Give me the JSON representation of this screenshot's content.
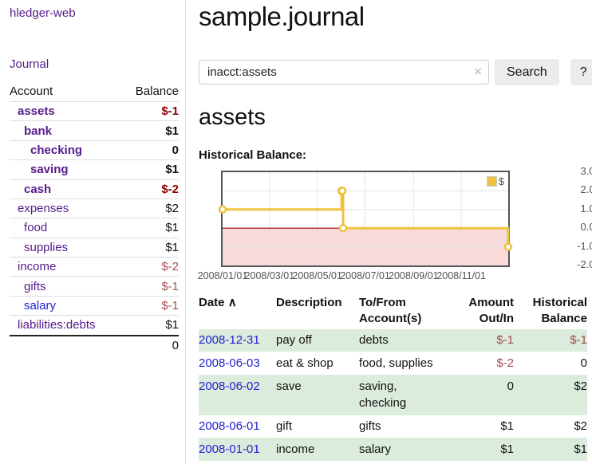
{
  "colors": {
    "link_purple": "#551a8b",
    "link_blue": "#2121cc",
    "negative_strong": "#8b0000",
    "negative_soft": "#a85252",
    "row_stripe_green": "#dcecdc",
    "chart_line": "#edc240",
    "chart_negative_fill": "#f9dada",
    "chart_zero_line": "#a00000",
    "button_bg": "#ececec"
  },
  "sidebar": {
    "app_title": "hledger-web",
    "nav": {
      "journal": "Journal"
    },
    "accounts_table": {
      "headers": {
        "account": "Account",
        "balance": "Balance"
      },
      "rows": [
        {
          "name": "assets",
          "balance": "$-1",
          "level": 1,
          "bold": true,
          "link": "purple",
          "bal_style": "negs"
        },
        {
          "name": "bank",
          "balance": "$1",
          "level": 2,
          "bold": true,
          "link": "purple",
          "bal_style": ""
        },
        {
          "name": "checking",
          "balance": "0",
          "level": 3,
          "bold": true,
          "link": "purple",
          "bal_style": ""
        },
        {
          "name": "saving",
          "balance": "$1",
          "level": 3,
          "bold": true,
          "link": "purple",
          "bal_style": ""
        },
        {
          "name": "cash",
          "balance": "$-2",
          "level": 2,
          "bold": true,
          "link": "purple",
          "bal_style": "negs"
        },
        {
          "name": "expenses",
          "balance": "$2",
          "level": 1,
          "bold": false,
          "link": "purple",
          "bal_style": ""
        },
        {
          "name": "food",
          "balance": "$1",
          "level": 2,
          "bold": false,
          "link": "purple",
          "bal_style": ""
        },
        {
          "name": "supplies",
          "balance": "$1",
          "level": 2,
          "bold": false,
          "link": "purple",
          "bal_style": ""
        },
        {
          "name": "income",
          "balance": "$-2",
          "level": 1,
          "bold": false,
          "link": "purple",
          "bal_style": "neg"
        },
        {
          "name": "gifts",
          "balance": "$-1",
          "level": 2,
          "bold": false,
          "link": "purple",
          "bal_style": "neg"
        },
        {
          "name": "salary",
          "balance": "$-1",
          "level": 2,
          "bold": false,
          "link": "blue",
          "bal_style": "neg"
        },
        {
          "name": "liabilities:debts",
          "balance": "$1",
          "level": 1,
          "bold": false,
          "link": "purple",
          "bal_style": ""
        }
      ],
      "total": "0"
    }
  },
  "main": {
    "title": "sample.journal",
    "search": {
      "value": "inacct:assets",
      "clear_icon": "×",
      "button": "Search",
      "help": "?"
    },
    "account_heading": "assets",
    "chart_label": "Historical Balance:"
  },
  "chart_data": {
    "type": "line",
    "style": "steps",
    "title": "Historical Balance",
    "legend": [
      "$"
    ],
    "legend_position": "top-right",
    "ylim": [
      -2,
      3
    ],
    "x_start": "2008-01-01",
    "x_end": "2008-12-31",
    "y_ticks": [
      "3.0",
      "2.0",
      "1.0",
      "0.0",
      "-1.0",
      "-2.0"
    ],
    "x_ticks": [
      "2008/01/01",
      "2008/03/01",
      "2008/05/01",
      "2008/07/01",
      "2008/09/01",
      "2008/11/01"
    ],
    "grid": true,
    "negative_region_shaded": true,
    "points": [
      {
        "date": "2008-01-01",
        "value": 1
      },
      {
        "date": "2008-06-01",
        "value": 2
      },
      {
        "date": "2008-06-02",
        "value": 2
      },
      {
        "date": "2008-06-03",
        "value": 0
      },
      {
        "date": "2008-12-31",
        "value": -1
      }
    ]
  },
  "register": {
    "headers": {
      "date": "Date",
      "sort_icon": "∧",
      "description": "Description",
      "accounts": "To/From Account(s)",
      "amount": "Amount Out/In",
      "balance": "Historical Balance"
    },
    "rows": [
      {
        "date": "2008-12-31",
        "description": "pay off",
        "accounts": "debts",
        "amount": "$-1",
        "balance": "$-1",
        "amount_neg": true,
        "balance_neg": true
      },
      {
        "date": "2008-06-03",
        "description": "eat & shop",
        "accounts": "food, supplies",
        "amount": "$-2",
        "balance": "0",
        "amount_neg": true,
        "balance_neg": false
      },
      {
        "date": "2008-06-02",
        "description": "save",
        "accounts": "saving, checking",
        "amount": "0",
        "balance": "$2",
        "amount_neg": false,
        "balance_neg": false
      },
      {
        "date": "2008-06-01",
        "description": "gift",
        "accounts": "gifts",
        "amount": "$1",
        "balance": "$2",
        "amount_neg": false,
        "balance_neg": false
      },
      {
        "date": "2008-01-01",
        "description": "income",
        "accounts": "salary",
        "amount": "$1",
        "balance": "$1",
        "amount_neg": false,
        "balance_neg": false
      }
    ]
  }
}
